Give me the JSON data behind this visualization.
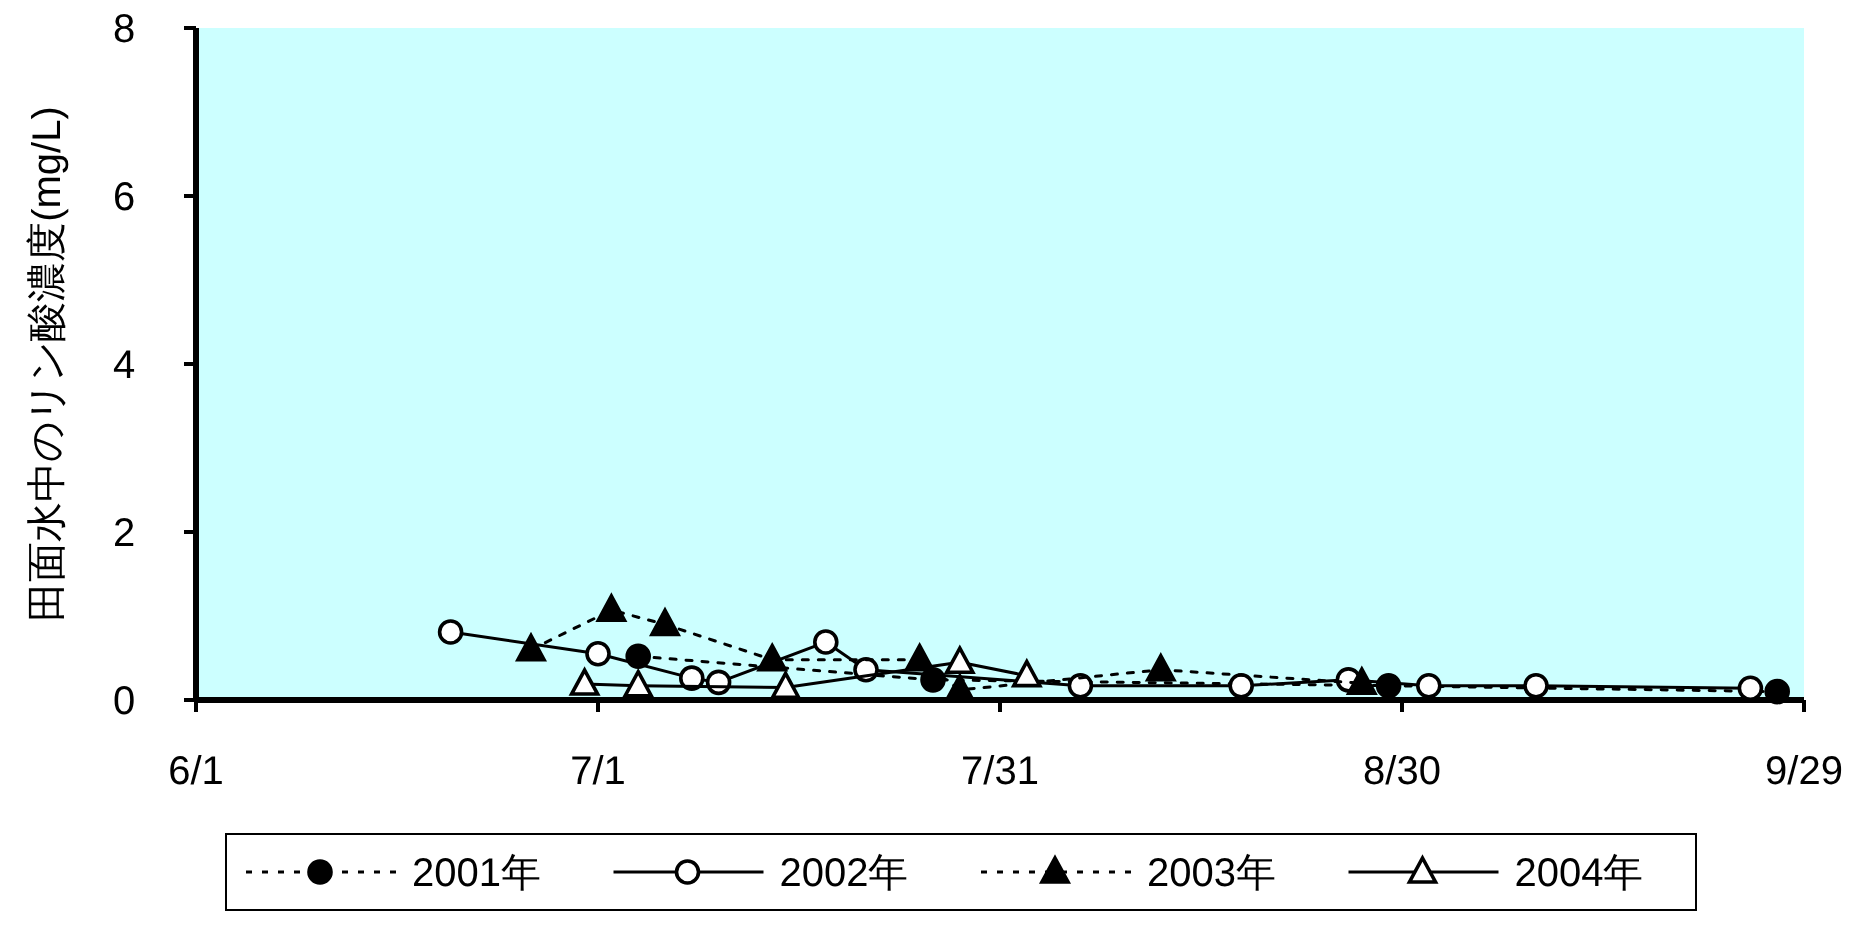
{
  "chart_data": {
    "type": "line",
    "ylabel": "田面水中のリン酸濃度(mg/L)",
    "xlim": [
      "--06-01",
      "--09-29"
    ],
    "xticks": [
      {
        "value": "--06-01",
        "label": "6/1"
      },
      {
        "value": "--07-01",
        "label": "7/1"
      },
      {
        "value": "--07-31",
        "label": "7/31"
      },
      {
        "value": "--08-30",
        "label": "8/30"
      },
      {
        "value": "--09-29",
        "label": "9/29"
      }
    ],
    "ylim": [
      0,
      8
    ],
    "yticks": [
      0,
      2,
      4,
      6,
      8
    ],
    "grid": false,
    "legend": "bottom",
    "series": [
      {
        "name": "2001年",
        "color": "#000000",
        "marker": "circle",
        "line_style": "dotted",
        "x": [
          "--07-04",
          "--07-26",
          "--08-29",
          "--09-27"
        ],
        "values": [
          0.52,
          0.24,
          0.17,
          0.1
        ]
      },
      {
        "name": "2002年",
        "color": "#000000",
        "marker": "circle",
        "line_style": "solid",
        "x": [
          "--06-20",
          "--07-01",
          "--07-08",
          "--07-10",
          "--07-18",
          "--07-21",
          "--08-06",
          "--08-18",
          "--08-26",
          "--09-01",
          "--09-09",
          "--09-25"
        ],
        "values": [
          0.81,
          0.55,
          0.26,
          0.21,
          0.69,
          0.36,
          0.17,
          0.17,
          0.24,
          0.17,
          0.17,
          0.14
        ]
      },
      {
        "name": "2003年",
        "color": "#000000",
        "marker": "triangle",
        "line_style": "dotted",
        "x": [
          "--06-26",
          "--07-02",
          "--07-06",
          "--07-14",
          "--07-25",
          "--07-28",
          "--08-12",
          "--08-27"
        ],
        "values": [
          0.6,
          1.07,
          0.9,
          0.48,
          0.48,
          0.12,
          0.36,
          0.2
        ]
      },
      {
        "name": "2004年",
        "color": "#000000",
        "marker": "triangle",
        "line_style": "solid",
        "x": [
          "--06-30",
          "--07-04",
          "--07-15",
          "--07-28",
          "--08-02"
        ],
        "values": [
          0.19,
          0.17,
          0.15,
          0.45,
          0.29
        ]
      }
    ]
  }
}
